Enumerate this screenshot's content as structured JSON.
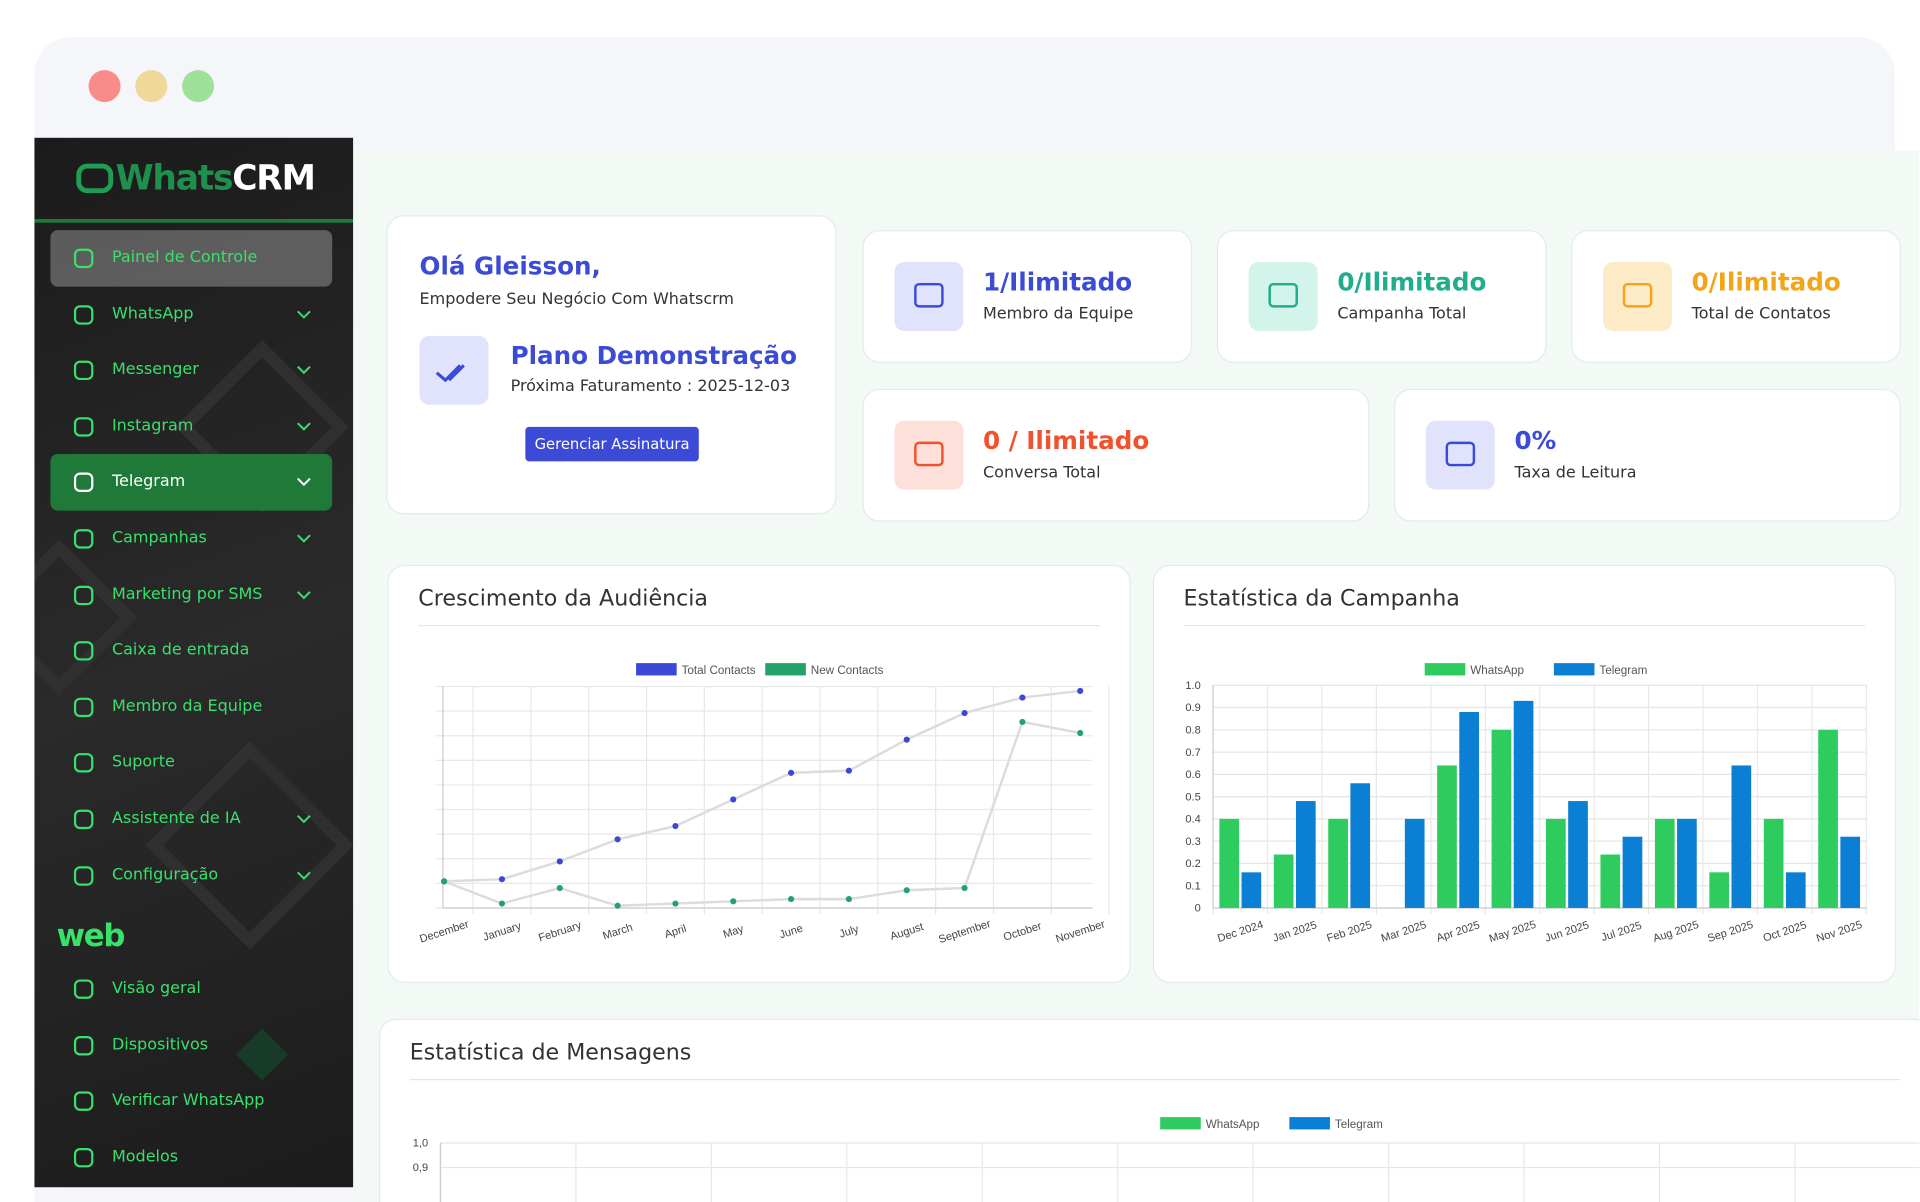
{
  "sidebar": {
    "logo": [
      "Whats",
      "CRM"
    ],
    "menu": [
      {
        "label": "Painel de Controle",
        "submenu": false,
        "state": "selected"
      },
      {
        "label": "WhatsApp",
        "submenu": true
      },
      {
        "label": "Messenger",
        "submenu": true
      },
      {
        "label": "Instagram",
        "submenu": true
      },
      {
        "label": "Telegram",
        "submenu": true,
        "state": "open"
      },
      {
        "label": "Campanhas",
        "submenu": true
      },
      {
        "label": "Marketing por SMS",
        "submenu": true
      },
      {
        "label": "Caixa de entrada",
        "submenu": false
      },
      {
        "label": "Membro da Equipe",
        "submenu": false
      },
      {
        "label": "Suporte",
        "submenu": false
      },
      {
        "label": "Assistente de IA",
        "submenu": true
      },
      {
        "label": "Configuração",
        "submenu": true
      }
    ],
    "section": "web",
    "web_menu": [
      {
        "label": "Visão geral"
      },
      {
        "label": "Dispositivos"
      },
      {
        "label": "Verificar WhatsApp"
      },
      {
        "label": "Modelos"
      }
    ]
  },
  "welcome": {
    "greeting": "Olá Gleisson,",
    "tagline": "Empodere Seu Negócio Com Whatscrm",
    "plan": "Plano Demonstração",
    "billing": "Próxima Faturamento : 2025-12-03",
    "button": "Gerenciar Assinatura"
  },
  "stats": [
    {
      "value": "1/Ilimitado",
      "label": "Membro da Equipe",
      "color": "#3c4bd6",
      "background": "#e0e3fb"
    },
    {
      "value": "0/Ilimitado",
      "label": "Campanha Total",
      "color": "#1fae8c",
      "background": "#d3f4ea"
    },
    {
      "value": "0/Ilimitado",
      "label": "Total de Contatos",
      "color": "#f2a516",
      "background": "#fdebc8"
    },
    {
      "value": "0 / Ilimitado",
      "label": "Conversa Total",
      "color": "#f0522e",
      "background": "#fde0da"
    },
    {
      "value": "0%",
      "label": "Taxa de Leitura",
      "color": "#3c4bd6",
      "background": "#e0e3fb"
    }
  ],
  "chart_data": [
    {
      "type": "line",
      "title": "Crescimento da Audiência",
      "categories": [
        "December",
        "January",
        "February",
        "March",
        "April",
        "May",
        "June",
        "July",
        "August",
        "September",
        "October",
        "November"
      ],
      "ylim": [
        0,
        10
      ],
      "grid": true,
      "series": [
        {
          "name": "Total Contacts",
          "color": "#3b48d6",
          "values": [
            1.2,
            1.3,
            2.1,
            3.1,
            3.7,
            4.9,
            6.1,
            6.2,
            7.6,
            8.8,
            9.5,
            9.8
          ]
        },
        {
          "name": "New Contacts",
          "color": "#23a36b",
          "values": [
            1.2,
            0.2,
            0.9,
            0.1,
            0.2,
            0.3,
            0.4,
            0.4,
            0.8,
            0.9,
            8.4,
            7.9
          ]
        }
      ]
    },
    {
      "type": "bar",
      "title": "Estatística da Campanha",
      "categories": [
        "Dec 2024",
        "Jan 2025",
        "Feb 2025",
        "Mar 2025",
        "Apr 2025",
        "May 2025",
        "Jun 2025",
        "Jul 2025",
        "Aug 2025",
        "Sep 2025",
        "Oct 2025",
        "Nov 2025"
      ],
      "ylim": [
        0,
        1
      ],
      "yticks": [
        0,
        0.1,
        0.2,
        0.3,
        0.4,
        0.5,
        0.6,
        0.7,
        0.8,
        0.9,
        {
          "value": 1,
          "label": "1.0"
        }
      ],
      "grid": true,
      "series": [
        {
          "name": "WhatsApp",
          "color": "#2ecc5f",
          "values": [
            0.4,
            0.24,
            0.4,
            0,
            0.64,
            0.8,
            0.4,
            0.24,
            0.4,
            0.16,
            0.4,
            0.8
          ]
        },
        {
          "name": "Telegram",
          "color": "#0a7fd4",
          "values": [
            0.16,
            0.48,
            0.56,
            0.4,
            0.88,
            0.93,
            0.48,
            0.32,
            0.4,
            0.64,
            0.16,
            0.32
          ]
        }
      ]
    },
    {
      "type": "bar",
      "title": "Estatística de Mensagens",
      "ylim": [
        0,
        1
      ],
      "yticks": [
        {
          "value": 1,
          "label": "1,0"
        },
        {
          "value": 0.9,
          "label": "0,9"
        }
      ],
      "grid": true,
      "series": [
        {
          "name": "WhatsApp",
          "color": "#2ecc5f"
        },
        {
          "name": "Telegram",
          "color": "#0a7fd4"
        }
      ]
    }
  ]
}
